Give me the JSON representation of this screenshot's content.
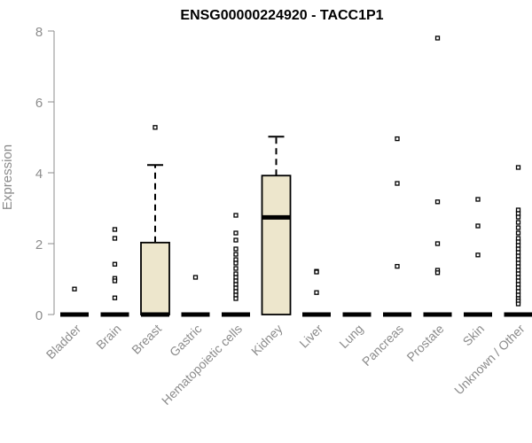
{
  "chart_data": {
    "type": "box",
    "title": "ENSG00000224920 - TACC1P1",
    "ylabel": "Expression",
    "xlabel": "",
    "ylim": [
      0,
      8
    ],
    "yticks": [
      0,
      2,
      4,
      6,
      8
    ],
    "box_color": "#ede6cc",
    "categories": [
      "Bladder",
      "Brain",
      "Breast",
      "Gastric",
      "Hematopoietic cells",
      "Kidney",
      "Liver",
      "Lung",
      "Pancreas",
      "Prostate",
      "Skin",
      "Unknown / Other"
    ],
    "boxes": [
      {
        "q1": 0,
        "median": 0,
        "q3": 0,
        "whisker_low": 0,
        "whisker_high": 0,
        "outliers": [
          0.72
        ]
      },
      {
        "q1": 0,
        "median": 0,
        "q3": 0,
        "whisker_low": 0,
        "whisker_high": 0,
        "outliers": [
          2.4,
          2.15,
          1.42,
          1.02,
          0.95,
          0.47
        ]
      },
      {
        "q1": 0,
        "median": 0,
        "q3": 2.03,
        "whisker_low": 0,
        "whisker_high": 4.22,
        "outliers": [
          5.28
        ]
      },
      {
        "q1": 0,
        "median": 0,
        "q3": 0,
        "whisker_low": 0,
        "whisker_high": 0,
        "outliers": [
          1.05
        ]
      },
      {
        "q1": 0,
        "median": 0,
        "q3": 0,
        "whisker_low": 0,
        "whisker_high": 0,
        "outliers": [
          2.8,
          2.3,
          2.1,
          1.85,
          1.7,
          1.55,
          1.45,
          1.3,
          1.15,
          1.05,
          0.95,
          0.85,
          0.75,
          0.65,
          0.55,
          0.45
        ]
      },
      {
        "q1": 0,
        "median": 2.74,
        "q3": 3.92,
        "whisker_low": 0,
        "whisker_high": 5.02,
        "outliers": []
      },
      {
        "q1": 0,
        "median": 0,
        "q3": 0,
        "whisker_low": 0,
        "whisker_high": 0,
        "outliers": [
          1.22,
          1.2,
          0.62
        ]
      },
      {
        "q1": 0,
        "median": 0,
        "q3": 0,
        "whisker_low": 0,
        "whisker_high": 0,
        "outliers": []
      },
      {
        "q1": 0,
        "median": 0,
        "q3": 0,
        "whisker_low": 0,
        "whisker_high": 0,
        "outliers": [
          4.96,
          3.7,
          1.36
        ]
      },
      {
        "q1": 0,
        "median": 0,
        "q3": 0,
        "whisker_low": 0,
        "whisker_high": 0,
        "outliers": [
          7.8,
          3.18,
          2.0,
          1.25,
          1.18
        ]
      },
      {
        "q1": 0,
        "median": 0,
        "q3": 0,
        "whisker_low": 0,
        "whisker_high": 0,
        "outliers": [
          3.25,
          2.5,
          1.68
        ]
      },
      {
        "q1": 0,
        "median": 0,
        "q3": 0,
        "whisker_low": 0,
        "whisker_high": 0,
        "outliers": [
          4.15,
          2.95,
          2.85,
          2.75,
          2.6,
          2.45,
          2.3,
          2.15,
          2.05,
          1.95,
          1.85,
          1.75,
          1.65,
          1.55,
          1.45,
          1.35,
          1.25,
          1.15,
          1.05,
          0.95,
          0.85,
          0.75,
          0.65,
          0.55,
          0.45,
          0.38,
          0.3
        ]
      }
    ]
  }
}
